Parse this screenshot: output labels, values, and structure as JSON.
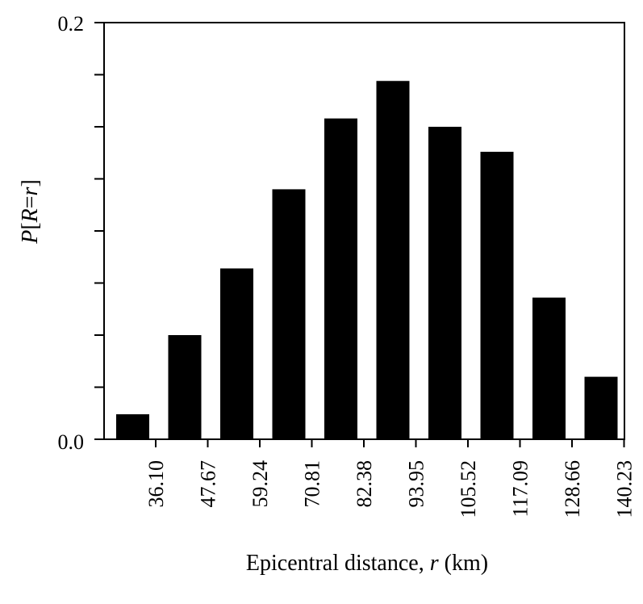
{
  "chart_data": {
    "type": "bar",
    "title": "",
    "xlabel": "Epicentral distance, r (km)",
    "xlabel_parts": {
      "prefix": "Epicentral distance, ",
      "var": "r",
      "suffix": " (km)"
    },
    "ylabel": "P[R=r]",
    "ylabel_parts": {
      "p": "P",
      "open": "[",
      "r1": "R",
      "eq": "=",
      "r2": "r",
      "close": "]"
    },
    "ylim": [
      0.0,
      0.2
    ],
    "ytick_labels": [
      "0.0",
      "0.2"
    ],
    "y_minor_ticks": [
      0.025,
      0.05,
      0.075,
      0.1,
      0.125,
      0.15,
      0.175
    ],
    "x_tick_labels": [
      "36.10",
      "47.67",
      "59.24",
      "70.81",
      "82.38",
      "93.95",
      "105.52",
      "117.09",
      "128.66",
      "140.23"
    ],
    "values": [
      0.012,
      0.05,
      0.082,
      0.12,
      0.154,
      0.172,
      0.15,
      0.138,
      0.068,
      0.03
    ],
    "bar_color": "#000000",
    "grid": false,
    "legend": "none"
  }
}
